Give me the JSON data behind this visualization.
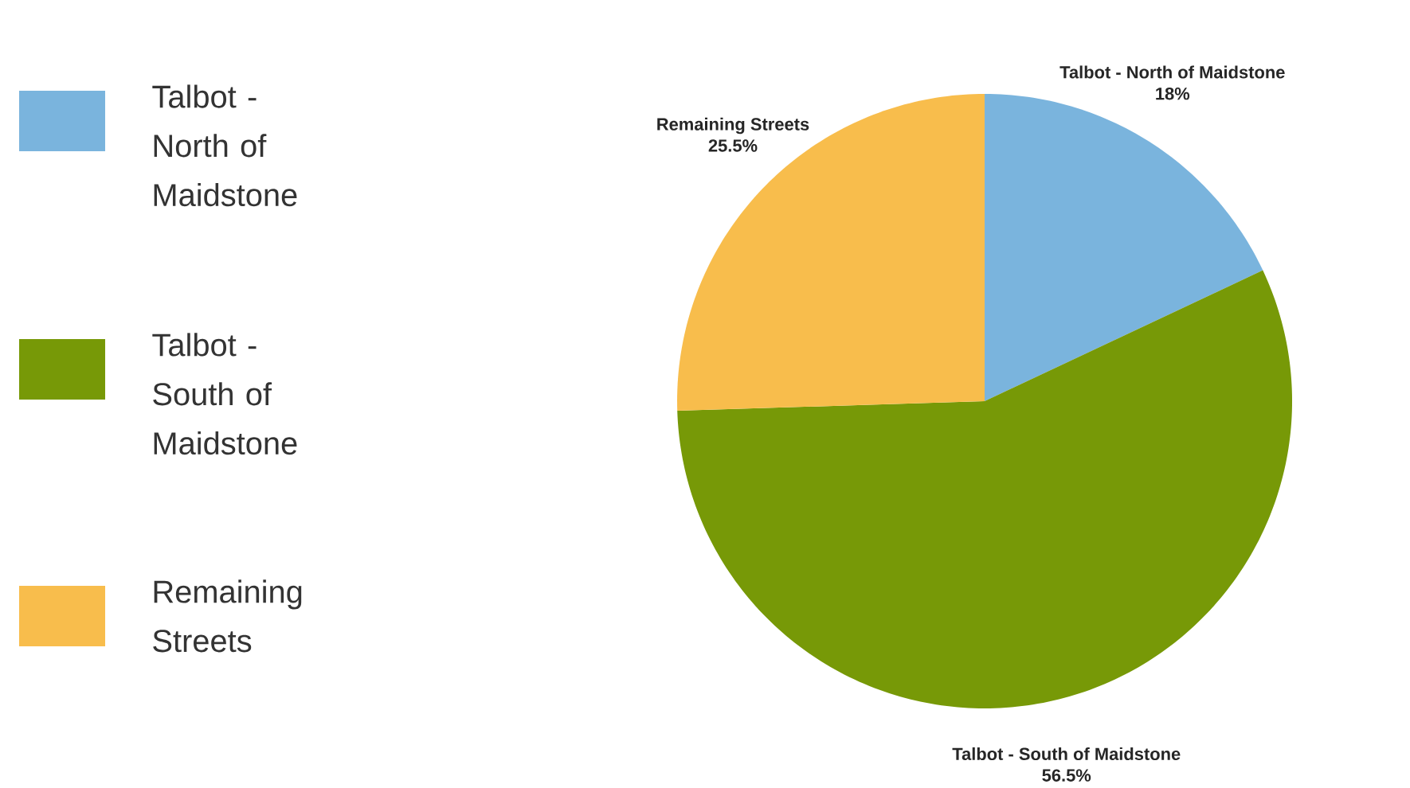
{
  "chart_data": {
    "type": "pie",
    "categories": [
      "Talbot - North of Maidstone",
      "Talbot - South of Maidstone",
      "Remaining Streets"
    ],
    "values": [
      18,
      56.5,
      25.5
    ],
    "value_labels": [
      "18%",
      "56.5%",
      "25.5%"
    ],
    "colors": [
      "#7ab4dd",
      "#779907",
      "#f8bd4c"
    ],
    "legend": "left"
  }
}
